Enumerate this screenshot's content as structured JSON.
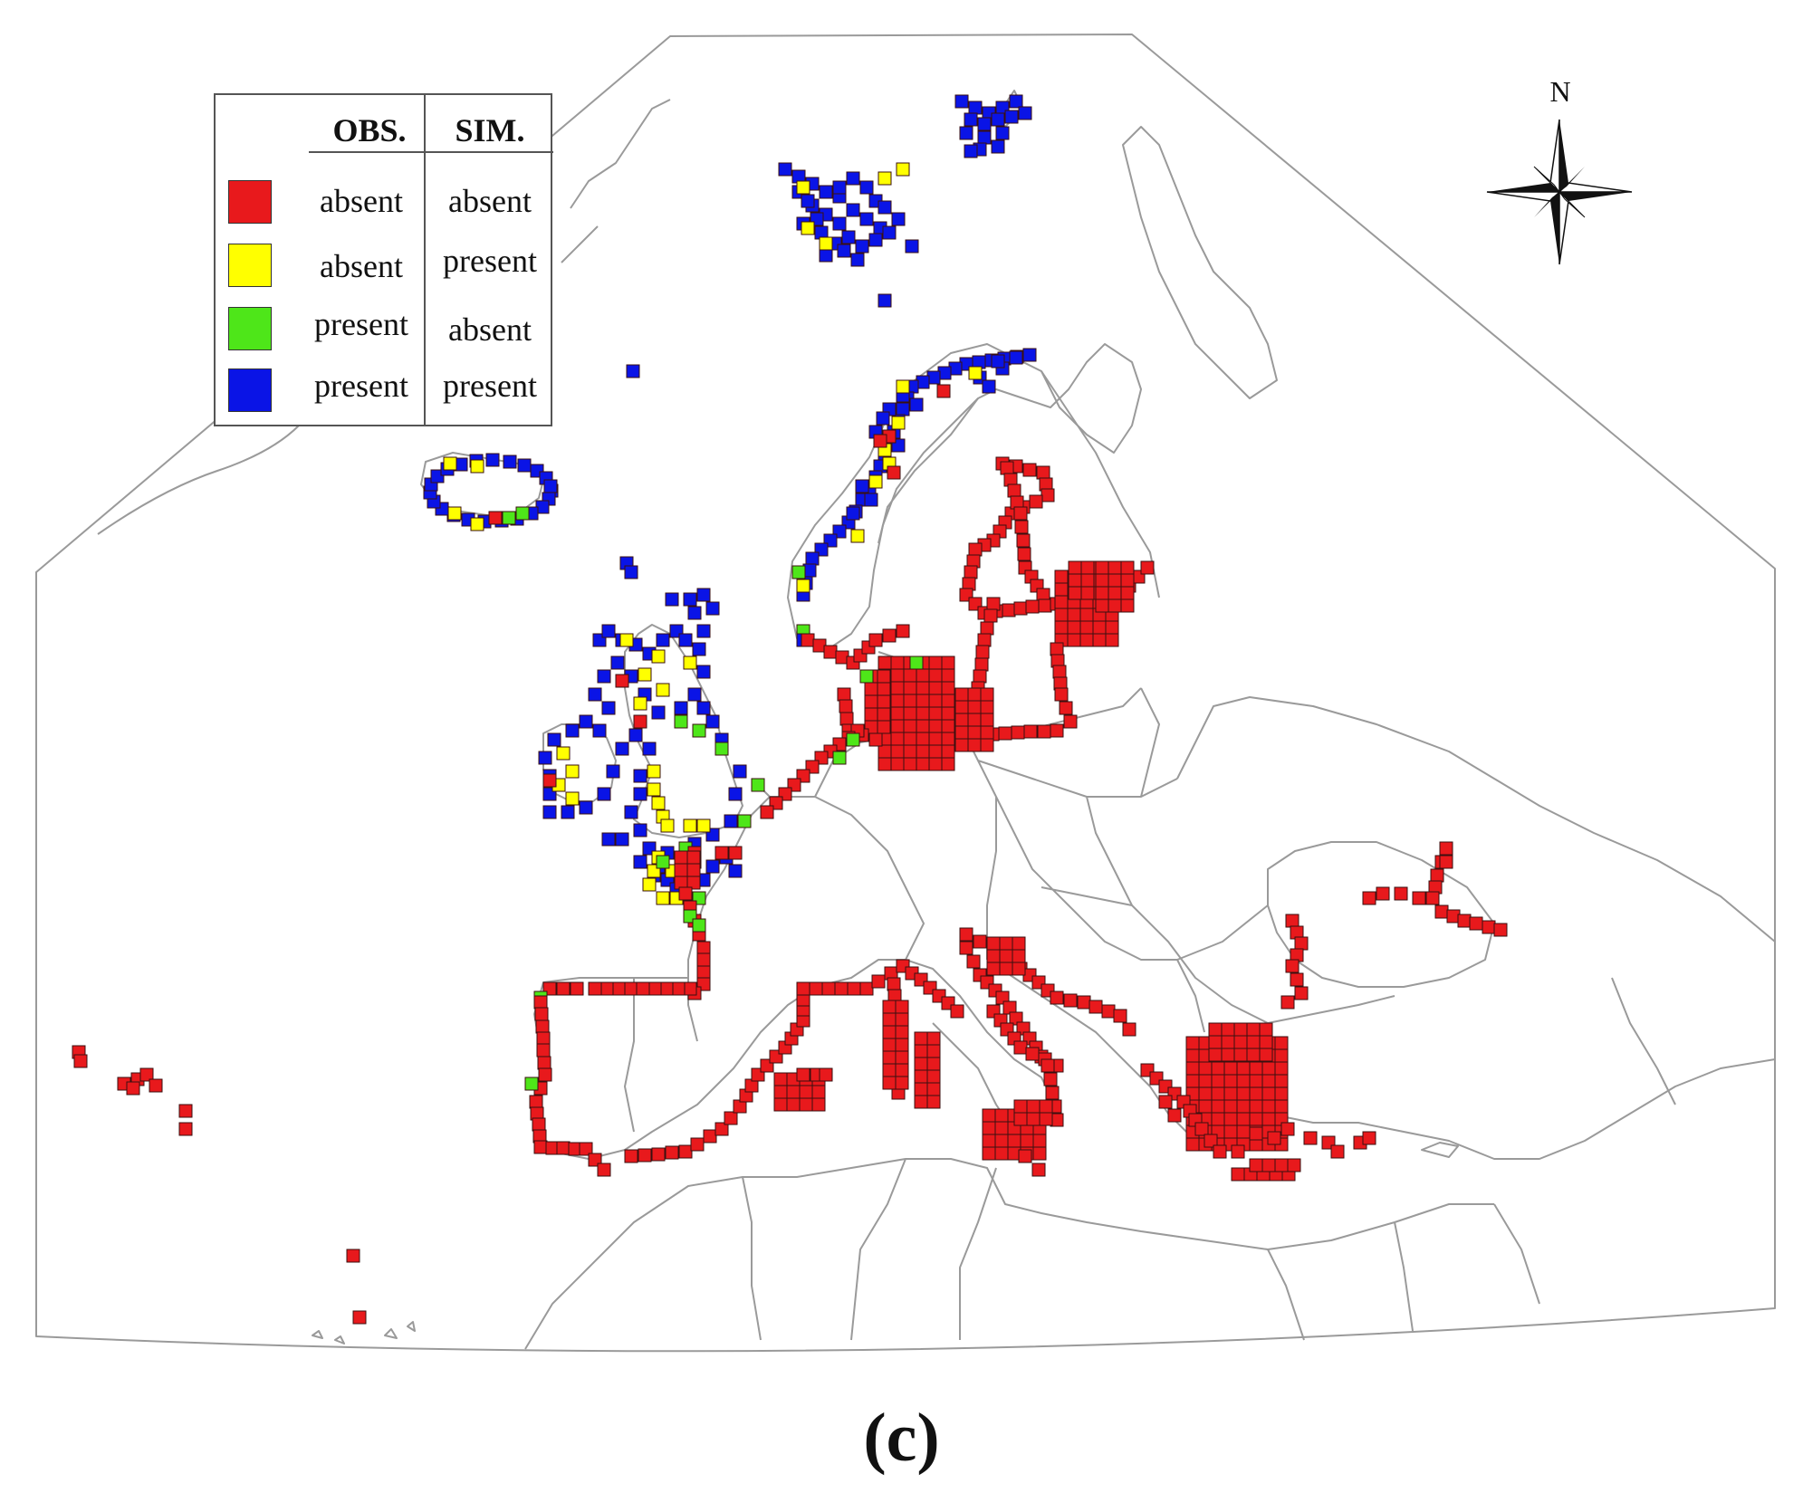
{
  "legend": {
    "header_obs": "OBS.",
    "header_sim": "SIM.",
    "rows": [
      {
        "obs": "absent",
        "sim": "absent",
        "color": "#e8191c"
      },
      {
        "obs": "absent",
        "sim": "present",
        "color": "#ffff00"
      },
      {
        "obs": "present",
        "sim": "absent",
        "color": "#4ee619"
      },
      {
        "obs": "present",
        "sim": "present",
        "color": "#0a14e6"
      }
    ]
  },
  "north_arrow": {
    "label": "N"
  },
  "caption": "(c)",
  "colors": {
    "border_lines": "#9a9a9a",
    "cell_outline": "#3a1010"
  },
  "map": {
    "region": "Europe",
    "categories": [
      "absent/absent",
      "absent/present",
      "present/absent",
      "present/present"
    ]
  }
}
